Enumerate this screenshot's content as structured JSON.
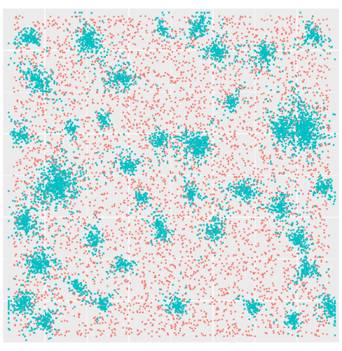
{
  "chart_data": {
    "type": "scatter",
    "title": "",
    "xlabel": "",
    "ylabel": "",
    "xlim": [
      0,
      1
    ],
    "ylim": [
      0,
      1
    ],
    "grid": true,
    "legend": "none",
    "panel_background": "#ebebeb",
    "grid_color": "#ffffff",
    "series": [
      {
        "id": "background",
        "color": "#f8766d",
        "count": 5200
      },
      {
        "id": "clusters",
        "color": "#00bfc4"
      }
    ],
    "clusters": [
      {
        "x": 0.25,
        "y": 0.91,
        "r": 0.055,
        "n": 260,
        "arms": 4
      },
      {
        "x": 0.11,
        "y": 0.78,
        "r": 0.06,
        "n": 220,
        "arms": 3
      },
      {
        "x": 0.08,
        "y": 0.92,
        "r": 0.04,
        "n": 140,
        "arms": 3
      },
      {
        "x": 0.35,
        "y": 0.79,
        "r": 0.05,
        "n": 180,
        "arms": 4
      },
      {
        "x": 0.58,
        "y": 0.95,
        "r": 0.045,
        "n": 140,
        "arms": 3
      },
      {
        "x": 0.63,
        "y": 0.87,
        "r": 0.05,
        "n": 170,
        "arms": 3
      },
      {
        "x": 0.78,
        "y": 0.87,
        "r": 0.05,
        "n": 170,
        "arms": 4
      },
      {
        "x": 0.92,
        "y": 0.92,
        "r": 0.045,
        "n": 140,
        "arms": 3
      },
      {
        "x": 0.9,
        "y": 0.63,
        "r": 0.09,
        "n": 650,
        "arms": 5
      },
      {
        "x": 0.82,
        "y": 0.64,
        "r": 0.05,
        "n": 160,
        "arms": 3
      },
      {
        "x": 0.58,
        "y": 0.59,
        "r": 0.06,
        "n": 300,
        "arms": 4
      },
      {
        "x": 0.46,
        "y": 0.61,
        "r": 0.04,
        "n": 120,
        "arms": 3
      },
      {
        "x": 0.37,
        "y": 0.53,
        "r": 0.045,
        "n": 140,
        "arms": 3
      },
      {
        "x": 0.05,
        "y": 0.62,
        "r": 0.04,
        "n": 110,
        "arms": 3
      },
      {
        "x": 0.16,
        "y": 0.48,
        "r": 0.09,
        "n": 600,
        "arms": 5
      },
      {
        "x": 0.06,
        "y": 0.36,
        "r": 0.05,
        "n": 200,
        "arms": 4
      },
      {
        "x": 0.1,
        "y": 0.24,
        "r": 0.055,
        "n": 240,
        "arms": 4
      },
      {
        "x": 0.06,
        "y": 0.12,
        "r": 0.05,
        "n": 200,
        "arms": 4
      },
      {
        "x": 0.12,
        "y": 0.07,
        "r": 0.04,
        "n": 140,
        "arms": 3
      },
      {
        "x": 0.27,
        "y": 0.31,
        "r": 0.04,
        "n": 120,
        "arms": 3
      },
      {
        "x": 0.47,
        "y": 0.33,
        "r": 0.045,
        "n": 150,
        "arms": 3
      },
      {
        "x": 0.35,
        "y": 0.24,
        "r": 0.035,
        "n": 90,
        "arms": 3
      },
      {
        "x": 0.56,
        "y": 0.45,
        "r": 0.035,
        "n": 90,
        "arms": 3
      },
      {
        "x": 0.63,
        "y": 0.34,
        "r": 0.045,
        "n": 140,
        "arms": 3
      },
      {
        "x": 0.72,
        "y": 0.46,
        "r": 0.05,
        "n": 180,
        "arms": 4
      },
      {
        "x": 0.82,
        "y": 0.4,
        "r": 0.05,
        "n": 170,
        "arms": 3
      },
      {
        "x": 0.88,
        "y": 0.31,
        "r": 0.045,
        "n": 150,
        "arms": 3
      },
      {
        "x": 0.95,
        "y": 0.47,
        "r": 0.04,
        "n": 120,
        "arms": 3
      },
      {
        "x": 0.9,
        "y": 0.22,
        "r": 0.045,
        "n": 140,
        "arms": 3
      },
      {
        "x": 0.97,
        "y": 0.11,
        "r": 0.04,
        "n": 140,
        "arms": 3
      },
      {
        "x": 0.86,
        "y": 0.07,
        "r": 0.035,
        "n": 110,
        "arms": 3
      },
      {
        "x": 0.74,
        "y": 0.11,
        "r": 0.035,
        "n": 100,
        "arms": 3
      },
      {
        "x": 0.52,
        "y": 0.11,
        "r": 0.04,
        "n": 120,
        "arms": 3
      },
      {
        "x": 0.3,
        "y": 0.12,
        "r": 0.035,
        "n": 90,
        "arms": 3
      },
      {
        "x": 0.22,
        "y": 0.17,
        "r": 0.035,
        "n": 90,
        "arms": 3
      },
      {
        "x": 0.41,
        "y": 0.44,
        "r": 0.03,
        "n": 70,
        "arms": 3
      },
      {
        "x": 0.68,
        "y": 0.72,
        "r": 0.035,
        "n": 90,
        "arms": 3
      },
      {
        "x": 0.47,
        "y": 0.94,
        "r": 0.03,
        "n": 70,
        "arms": 3
      },
      {
        "x": 0.2,
        "y": 0.65,
        "r": 0.03,
        "n": 70,
        "arms": 3
      },
      {
        "x": 0.3,
        "y": 0.67,
        "r": 0.03,
        "n": 70,
        "arms": 3
      }
    ]
  }
}
